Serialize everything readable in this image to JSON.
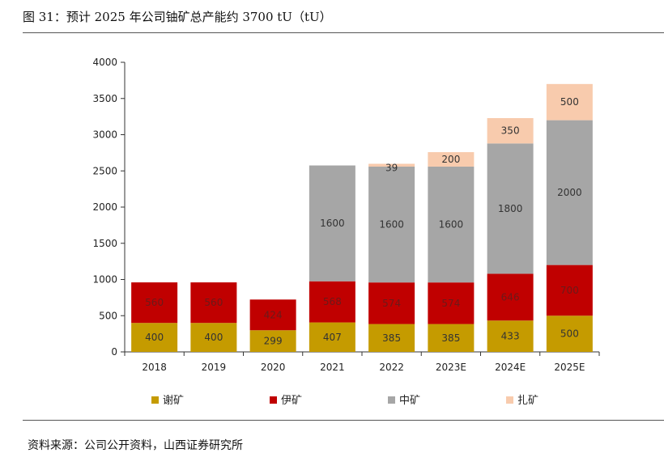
{
  "figure": {
    "title": "图 31：预计 2025 年公司铀矿总产能约 3700 tU（tU）",
    "source": "资料来源：公司公开资料，山西证券研究所"
  },
  "chart_data": {
    "type": "bar",
    "stacked": true,
    "categories": [
      "2018",
      "2019",
      "2020",
      "2021",
      "2022",
      "2023E",
      "2024E",
      "2025E"
    ],
    "ylim": [
      0,
      4000
    ],
    "yticks": [
      0,
      500,
      1000,
      1500,
      2000,
      2500,
      3000,
      3500,
      4000
    ],
    "grid": false,
    "legend_position": "bottom",
    "series": [
      {
        "name": "谢矿",
        "color": "#C59B00",
        "label_color": "#333333",
        "values": [
          400,
          400,
          299,
          407,
          385,
          385,
          433,
          500
        ]
      },
      {
        "name": "伊矿",
        "color": "#C00000",
        "label_color": "#6B1A1A",
        "values": [
          560,
          560,
          424,
          568,
          574,
          574,
          646,
          700
        ]
      },
      {
        "name": "中矿",
        "color": "#A6A6A6",
        "label_color": "#333333",
        "values": [
          0,
          0,
          0,
          1600,
          1600,
          1600,
          1800,
          2000
        ]
      },
      {
        "name": "扎矿",
        "color": "#F8CBAD",
        "label_color": "#333333",
        "values": [
          0,
          0,
          0,
          0,
          39,
          200,
          350,
          500
        ]
      }
    ]
  }
}
